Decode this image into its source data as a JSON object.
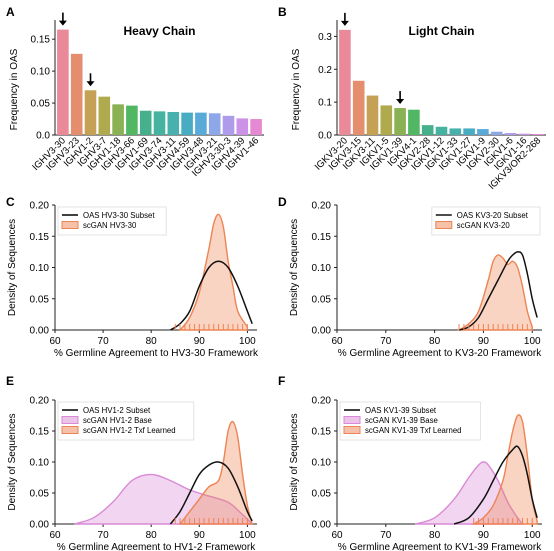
{
  "chart_data": [
    {
      "panel": "A",
      "type": "bar",
      "title": "Heavy Chain",
      "xlabel": "",
      "ylabel": "Frequency in OAS",
      "ylim": [
        0,
        0.18
      ],
      "yticks": [
        0.0,
        0.05,
        0.1,
        0.15
      ],
      "ytick_labels": [
        "0.0",
        "0.05",
        "0.10",
        "0.15"
      ],
      "categories": [
        "IGHV3-30",
        "IGHV3-23",
        "IGHV1-2",
        "IGHV3-7",
        "IGHV1-18",
        "IGHV3-66",
        "IGHV1-69",
        "IGHV3-74",
        "IGHV3-11",
        "IGHV4-59",
        "IGHV3-48",
        "IGHV3-21",
        "IGHV3-30-3",
        "IGHV4-39",
        "IGHV1-46"
      ],
      "values": [
        0.165,
        0.127,
        0.07,
        0.06,
        0.048,
        0.046,
        0.038,
        0.037,
        0.036,
        0.035,
        0.035,
        0.034,
        0.03,
        0.026,
        0.025
      ],
      "colors": [
        "#ea8a99",
        "#e58e6d",
        "#c5a156",
        "#aeaa4d",
        "#8ab153",
        "#52b762",
        "#46b08c",
        "#45b39f",
        "#48b1ae",
        "#48adc3",
        "#59a9d9",
        "#8ea7e9",
        "#ae9ceb",
        "#cc92e8",
        "#e589d2"
      ],
      "arrows_at": [
        "IGHV3-30",
        "IGHV1-2"
      ],
      "grid": false
    },
    {
      "panel": "B",
      "type": "bar",
      "title": "Light Chain",
      "xlabel": "",
      "ylabel": "Frequency in OAS",
      "ylim": [
        0,
        0.35
      ],
      "yticks": [
        0.0,
        0.1,
        0.2,
        0.3
      ],
      "ytick_labels": [
        "0.0",
        "0.1",
        "0.2",
        "0.3"
      ],
      "categories": [
        "IGKV3-20",
        "IGKV3-15",
        "IGKV3-11",
        "IGKV1-5",
        "IGKV1-39",
        "IGKV4-1",
        "IGKV2-28",
        "IGKV1-12",
        "IGKV1-33",
        "IGKV1-27",
        "IGKV1-9",
        "IGKV2-30",
        "IGKV1-6",
        "IGKV1-16",
        "IGKV3/OR2-268"
      ],
      "values": [
        0.32,
        0.165,
        0.12,
        0.09,
        0.082,
        0.077,
        0.03,
        0.025,
        0.02,
        0.02,
        0.018,
        0.01,
        0.006,
        0.004,
        0.003
      ],
      "colors": [
        "#ea8a99",
        "#e58e6d",
        "#c5a156",
        "#aeaa4d",
        "#8ab153",
        "#52b762",
        "#46b08c",
        "#45b39f",
        "#48b1ae",
        "#48adc3",
        "#59a9d9",
        "#8ea7e9",
        "#ae9ceb",
        "#cc92e8",
        "#e589d2"
      ],
      "arrows_at": [
        "IGKV3-20",
        "IGKV1-39"
      ],
      "grid": false
    },
    {
      "panel": "C",
      "type": "area",
      "xlabel": "% Germline Agreement to HV3-30 Framework",
      "ylabel": "Density of Sequences",
      "xlim": [
        60,
        102
      ],
      "ylim": [
        0,
        0.2
      ],
      "xticks": [
        60,
        70,
        80,
        90,
        100
      ],
      "yticks": [
        0.0,
        0.05,
        0.1,
        0.15,
        0.2
      ],
      "ytick_labels": [
        "0.00",
        "0.05",
        "0.10",
        "0.15",
        "0.20"
      ],
      "legend_position": "top-left",
      "series": [
        {
          "name": "OAS HV3-30 Subset",
          "style": "line",
          "color": "#111111",
          "x": [
            84,
            86,
            88,
            90,
            92,
            94,
            96,
            98,
            100,
            101
          ],
          "y": [
            0.0,
            0.01,
            0.03,
            0.07,
            0.1,
            0.11,
            0.1,
            0.07,
            0.03,
            0.01
          ]
        },
        {
          "name": "scGAN HV3-30",
          "style": "fill",
          "color": "#ee8354",
          "x": [
            86,
            88,
            90,
            92,
            93,
            94,
            95,
            96,
            97,
            98,
            100
          ],
          "y": [
            0.0,
            0.02,
            0.06,
            0.13,
            0.17,
            0.185,
            0.165,
            0.11,
            0.07,
            0.03,
            0.005
          ]
        }
      ],
      "rug": {
        "color": "#ee8354",
        "x": [
          85,
          86,
          87,
          88,
          89,
          90,
          91,
          92,
          93,
          94,
          95,
          96,
          97,
          98,
          99,
          100
        ]
      },
      "grid": false
    },
    {
      "panel": "D",
      "type": "area",
      "xlabel": "% Germline Agreement to KV3-20 Framework",
      "ylabel": "Density of Sequences",
      "xlim": [
        60,
        102
      ],
      "ylim": [
        0,
        0.2
      ],
      "xticks": [
        60,
        70,
        80,
        90,
        100
      ],
      "yticks": [
        0.0,
        0.05,
        0.1,
        0.15,
        0.2
      ],
      "ytick_labels": [
        "0.00",
        "0.05",
        "0.10",
        "0.15",
        "0.20"
      ],
      "legend_position": "top-right",
      "series": [
        {
          "name": "OAS KV3-20 Subset",
          "style": "line",
          "color": "#111111",
          "x": [
            85,
            87,
            89,
            91,
            93,
            95,
            96,
            97,
            98,
            99,
            100,
            101
          ],
          "y": [
            0.0,
            0.005,
            0.02,
            0.05,
            0.08,
            0.11,
            0.12,
            0.125,
            0.12,
            0.09,
            0.05,
            0.02
          ]
        },
        {
          "name": "scGAN KV3-20",
          "style": "fill",
          "color": "#ee8354",
          "x": [
            85,
            87,
            89,
            91,
            92,
            93,
            94,
            95,
            96,
            97,
            98,
            99,
            100
          ],
          "y": [
            0.0,
            0.01,
            0.03,
            0.08,
            0.11,
            0.12,
            0.115,
            0.105,
            0.11,
            0.1,
            0.07,
            0.03,
            0.005
          ]
        }
      ],
      "rug": {
        "color": "#ee8354",
        "x": [
          85,
          86,
          87,
          88,
          89,
          90,
          91,
          92,
          93,
          94,
          95,
          96,
          97,
          98,
          99
        ]
      },
      "grid": false
    },
    {
      "panel": "E",
      "type": "area",
      "xlabel": "% Germline Agreement to HV1-2 Framework",
      "ylabel": "Density of Sequences",
      "xlim": [
        60,
        102
      ],
      "ylim": [
        0,
        0.2
      ],
      "xticks": [
        60,
        70,
        80,
        90,
        100
      ],
      "yticks": [
        0.0,
        0.05,
        0.1,
        0.15,
        0.2
      ],
      "ytick_labels": [
        "0.00",
        "0.05",
        "0.10",
        "0.15",
        "0.20"
      ],
      "legend_position": "top-left",
      "series": [
        {
          "name": "OAS HV1-2 Subset",
          "style": "line",
          "color": "#111111",
          "x": [
            84,
            86,
            88,
            90,
            92,
            94,
            96,
            98,
            100,
            101
          ],
          "y": [
            0.0,
            0.02,
            0.05,
            0.08,
            0.095,
            0.1,
            0.09,
            0.06,
            0.02,
            0.005
          ]
        },
        {
          "name": "scGAN HV1-2 Base",
          "style": "fill",
          "color": "#d98ad6",
          "x": [
            64,
            68,
            72,
            76,
            80,
            84,
            88,
            92,
            96,
            99,
            101
          ],
          "y": [
            0.0,
            0.01,
            0.035,
            0.07,
            0.08,
            0.07,
            0.055,
            0.045,
            0.035,
            0.015,
            0.0
          ]
        },
        {
          "name": "scGAN HV1-2 Txf Learned",
          "style": "fill",
          "color": "#ee8354",
          "x": [
            86,
            88,
            90,
            92,
            94,
            95,
            96,
            97,
            98,
            99,
            100,
            101
          ],
          "y": [
            0.0,
            0.02,
            0.04,
            0.06,
            0.07,
            0.1,
            0.15,
            0.165,
            0.14,
            0.08,
            0.03,
            0.0
          ]
        }
      ],
      "rug": {
        "color": "#ee8354",
        "x": [
          85,
          86,
          87,
          88,
          89,
          90,
          91,
          92,
          93,
          94,
          95,
          96,
          97,
          98,
          99,
          100
        ]
      },
      "grid": false
    },
    {
      "panel": "F",
      "type": "area",
      "xlabel": "% Germline Agreement to KV1-39 Framework",
      "ylabel": "Density of Sequences",
      "xlim": [
        60,
        102
      ],
      "ylim": [
        0,
        0.2
      ],
      "xticks": [
        60,
        70,
        80,
        90,
        100
      ],
      "yticks": [
        0.0,
        0.05,
        0.1,
        0.15,
        0.2
      ],
      "ytick_labels": [
        "0.00",
        "0.05",
        "0.10",
        "0.15",
        "0.20"
      ],
      "legend_position": "top-left",
      "series": [
        {
          "name": "OAS KV1-39 Subset",
          "style": "line",
          "color": "#111111",
          "x": [
            84,
            87,
            90,
            92,
            94,
            96,
            97,
            98,
            99,
            100,
            101
          ],
          "y": [
            0.0,
            0.01,
            0.04,
            0.07,
            0.1,
            0.12,
            0.125,
            0.11,
            0.08,
            0.04,
            0.01
          ]
        },
        {
          "name": "scGAN KV1-39 Base",
          "style": "fill",
          "color": "#d98ad6",
          "x": [
            76,
            80,
            84,
            87,
            89,
            90,
            91,
            93,
            95,
            97,
            98
          ],
          "y": [
            0.0,
            0.01,
            0.04,
            0.075,
            0.095,
            0.1,
            0.095,
            0.07,
            0.035,
            0.01,
            0.0
          ]
        },
        {
          "name": "scGAN KV1-39 Txf Learned",
          "style": "fill",
          "color": "#ee8354",
          "x": [
            88,
            90,
            92,
            94,
            95,
            96,
            97,
            98,
            99,
            100,
            101
          ],
          "y": [
            0.0,
            0.01,
            0.03,
            0.07,
            0.11,
            0.15,
            0.175,
            0.165,
            0.11,
            0.04,
            0.005
          ]
        }
      ],
      "rug": {
        "color": "#ee8354",
        "x": [
          88,
          89,
          90,
          91,
          92,
          93,
          94,
          95,
          96,
          97,
          98,
          99,
          100
        ]
      },
      "grid": false
    }
  ]
}
